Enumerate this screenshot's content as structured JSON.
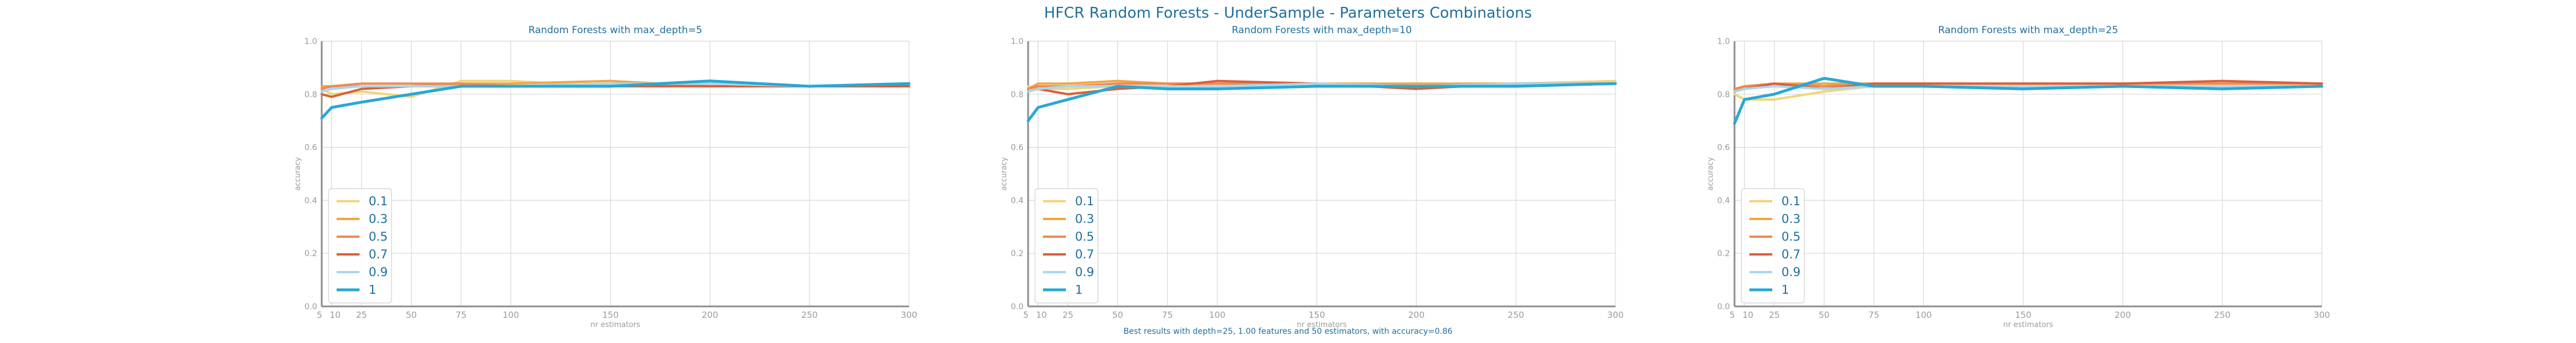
{
  "suptitle": "HFCR Random Forests - UnderSample - Parameters Combinations",
  "footnote": "Best results with depth=25, 1.00 features and 50 estimators, with accuracy=0.86",
  "colors": {
    "0.1": "#f2d47a",
    "0.3": "#f0a640",
    "0.5": "#ee8a55",
    "0.7": "#dc5e3a",
    "0.9": "#a7d8ef",
    "1": "#27a8d6",
    "title": "#1f6f9c",
    "axis_text": "#9a9a9a",
    "grid": "#d8d8d8",
    "spine": "#8c8c8c",
    "legend_text": "#1f6f9c"
  },
  "chart_data": [
    {
      "type": "line",
      "title": "Random Forests with max_depth=5",
      "xlabel": "nr estimators",
      "ylabel": "accuracy",
      "x": [
        5,
        10,
        25,
        50,
        75,
        100,
        150,
        200,
        250,
        300
      ],
      "xticks": [
        5,
        10,
        25,
        50,
        75,
        100,
        150,
        200,
        250,
        300
      ],
      "yticks": [
        0.0,
        0.2,
        0.4,
        0.6,
        0.8,
        1.0
      ],
      "xlim": [
        5,
        300
      ],
      "ylim": [
        0.0,
        1.0
      ],
      "grid": true,
      "legend_position": "lower-left",
      "series": [
        {
          "name": "0.1",
          "values": [
            0.82,
            0.8,
            0.81,
            0.79,
            0.85,
            0.85,
            0.83,
            0.83,
            0.83,
            0.83
          ]
        },
        {
          "name": "0.3",
          "values": [
            0.83,
            0.83,
            0.83,
            0.83,
            0.84,
            0.84,
            0.85,
            0.83,
            0.83,
            0.83
          ]
        },
        {
          "name": "0.5",
          "values": [
            0.82,
            0.83,
            0.84,
            0.84,
            0.84,
            0.83,
            0.84,
            0.83,
            0.83,
            0.83
          ]
        },
        {
          "name": "0.7",
          "values": [
            0.8,
            0.79,
            0.82,
            0.83,
            0.83,
            0.83,
            0.83,
            0.83,
            0.83,
            0.83
          ]
        },
        {
          "name": "0.9",
          "values": [
            0.81,
            0.82,
            0.83,
            0.83,
            0.83,
            0.83,
            0.84,
            0.84,
            0.83,
            0.84
          ]
        },
        {
          "name": "1",
          "values": [
            0.71,
            0.75,
            0.77,
            0.8,
            0.83,
            0.83,
            0.83,
            0.85,
            0.83,
            0.84
          ]
        }
      ]
    },
    {
      "type": "line",
      "title": "Random Forests with max_depth=10",
      "xlabel": "nr estimators",
      "ylabel": "accuracy",
      "x": [
        5,
        10,
        25,
        50,
        75,
        100,
        150,
        200,
        250,
        300
      ],
      "xticks": [
        5,
        10,
        25,
        50,
        75,
        100,
        150,
        200,
        250,
        300
      ],
      "yticks": [
        0.0,
        0.2,
        0.4,
        0.6,
        0.8,
        1.0
      ],
      "xlim": [
        5,
        300
      ],
      "ylim": [
        0.0,
        1.0
      ],
      "grid": true,
      "legend_position": "lower-left",
      "series": [
        {
          "name": "0.1",
          "values": [
            0.83,
            0.82,
            0.82,
            0.83,
            0.83,
            0.84,
            0.84,
            0.83,
            0.84,
            0.85
          ]
        },
        {
          "name": "0.3",
          "values": [
            0.82,
            0.84,
            0.84,
            0.85,
            0.84,
            0.84,
            0.84,
            0.84,
            0.84,
            0.84
          ]
        },
        {
          "name": "0.5",
          "values": [
            0.82,
            0.83,
            0.83,
            0.84,
            0.84,
            0.84,
            0.84,
            0.83,
            0.84,
            0.84
          ]
        },
        {
          "name": "0.7",
          "values": [
            0.81,
            0.82,
            0.8,
            0.82,
            0.83,
            0.85,
            0.84,
            0.82,
            0.84,
            0.84
          ]
        },
        {
          "name": "0.9",
          "values": [
            0.81,
            0.82,
            0.83,
            0.83,
            0.83,
            0.83,
            0.84,
            0.83,
            0.84,
            0.84
          ]
        },
        {
          "name": "1",
          "values": [
            0.7,
            0.75,
            0.78,
            0.83,
            0.82,
            0.82,
            0.83,
            0.83,
            0.83,
            0.84
          ]
        }
      ]
    },
    {
      "type": "line",
      "title": "Random Forests with max_depth=25",
      "xlabel": "nr estimators",
      "ylabel": "accuracy",
      "x": [
        5,
        10,
        25,
        50,
        75,
        100,
        150,
        200,
        250,
        300
      ],
      "xticks": [
        5,
        10,
        25,
        50,
        75,
        100,
        150,
        200,
        250,
        300
      ],
      "yticks": [
        0.0,
        0.2,
        0.4,
        0.6,
        0.8,
        1.0
      ],
      "xlim": [
        5,
        300
      ],
      "ylim": [
        0.0,
        1.0
      ],
      "grid": true,
      "legend_position": "lower-left",
      "series": [
        {
          "name": "0.1",
          "values": [
            0.8,
            0.78,
            0.78,
            0.81,
            0.83,
            0.83,
            0.83,
            0.83,
            0.83,
            0.83
          ]
        },
        {
          "name": "0.3",
          "values": [
            0.81,
            0.83,
            0.84,
            0.84,
            0.84,
            0.84,
            0.84,
            0.84,
            0.84,
            0.84
          ]
        },
        {
          "name": "0.5",
          "values": [
            0.82,
            0.83,
            0.84,
            0.83,
            0.84,
            0.84,
            0.84,
            0.84,
            0.84,
            0.84
          ]
        },
        {
          "name": "0.7",
          "values": [
            0.81,
            0.82,
            0.84,
            0.82,
            0.84,
            0.84,
            0.84,
            0.84,
            0.85,
            0.84
          ]
        },
        {
          "name": "0.9",
          "values": [
            0.81,
            0.82,
            0.83,
            0.82,
            0.83,
            0.83,
            0.83,
            0.83,
            0.83,
            0.83
          ]
        },
        {
          "name": "1",
          "values": [
            0.69,
            0.78,
            0.8,
            0.86,
            0.83,
            0.83,
            0.82,
            0.83,
            0.82,
            0.83
          ]
        }
      ]
    }
  ]
}
